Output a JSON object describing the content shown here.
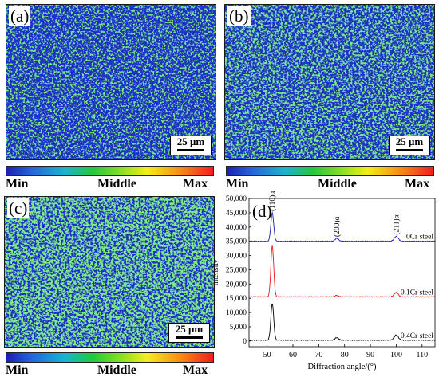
{
  "panels": [
    {
      "label": "(a)",
      "scalebar": "25 μm"
    },
    {
      "label": "(b)",
      "scalebar": "25 μm"
    },
    {
      "label": "(c)",
      "scalebar": "25 μm"
    }
  ],
  "colorbar": {
    "min": "Min",
    "middle": "Middle",
    "max": "Max"
  },
  "colors": {
    "map_base": "#1f2fc8",
    "map_green": "#2ccd3c",
    "map_cyan": "#19b7d6",
    "series_0cr": "#1a1ab4",
    "series_01cr": "#e01a1a",
    "series_04cr": "#000000"
  },
  "chart_data": {
    "type": "line",
    "panel_label": "(d)",
    "xlabel": "Diffraction angle/(°)",
    "ylabel": "Intensity",
    "xlim": [
      43,
      115
    ],
    "ylim": [
      -2000,
      50000
    ],
    "xticks": [
      50,
      60,
      70,
      80,
      90,
      100,
      110
    ],
    "yticks": [
      0,
      5000,
      10000,
      15000,
      20000,
      25000,
      30000,
      35000,
      40000,
      45000,
      50000
    ],
    "ytick_labels": [
      "0",
      "5,000",
      "10,000",
      "15,000",
      "20,000",
      "25,000",
      "30,000",
      "35,000",
      "40,000",
      "45,000",
      "50,000"
    ],
    "peak_labels": [
      {
        "text": "(110)α",
        "x": 52
      },
      {
        "text": "(200)α",
        "x": 77
      },
      {
        "text": "(211)α",
        "x": 100
      }
    ],
    "series": [
      {
        "name": "0Cr steel",
        "baseline": 35000,
        "peaks": [
          [
            52,
            45000
          ],
          [
            77,
            36000
          ],
          [
            100,
            36700
          ]
        ]
      },
      {
        "name": "0.1Cr steel",
        "baseline": 15500,
        "peaks": [
          [
            52,
            33500
          ],
          [
            77,
            16000
          ],
          [
            100,
            17000
          ]
        ]
      },
      {
        "name": "0.4Cr steel",
        "baseline": 300,
        "peaks": [
          [
            52,
            13200
          ],
          [
            77,
            1200
          ],
          [
            100,
            2100
          ]
        ]
      }
    ]
  }
}
